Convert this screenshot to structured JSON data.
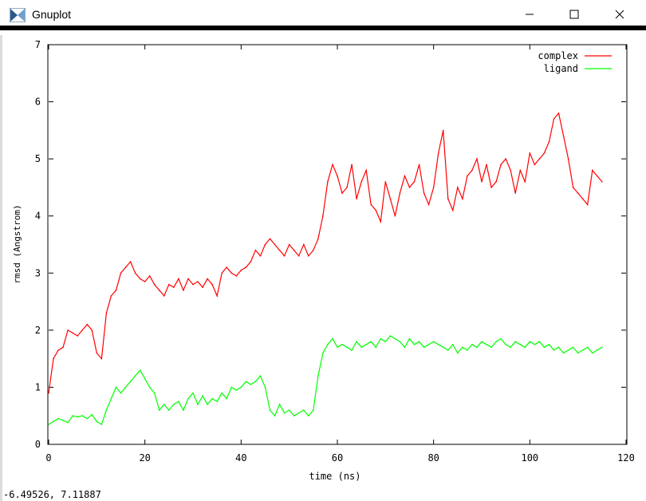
{
  "window": {
    "title": "Gnuplot"
  },
  "status": {
    "coords": "-6.49526,  7.11887"
  },
  "colors": {
    "complex": "#ff0000",
    "ligand": "#00ff00",
    "frame": "#000000"
  },
  "chart_data": {
    "type": "line",
    "title": "",
    "xlabel": "time (ns)",
    "ylabel": "rmsd (Angstrom)",
    "xlim": [
      0,
      120
    ],
    "ylim": [
      0,
      7
    ],
    "xticks": [
      0,
      20,
      40,
      60,
      80,
      100,
      120
    ],
    "yticks": [
      0,
      1,
      2,
      3,
      4,
      5,
      6,
      7
    ],
    "legend_position": "top-right",
    "series": [
      {
        "name": "complex",
        "color": "#ff0000",
        "points": [
          [
            0,
            0.9
          ],
          [
            1,
            1.5
          ],
          [
            2,
            1.65
          ],
          [
            3,
            1.7
          ],
          [
            4,
            2.0
          ],
          [
            5,
            1.95
          ],
          [
            6,
            1.9
          ],
          [
            7,
            2.0
          ],
          [
            8,
            2.1
          ],
          [
            9,
            2.0
          ],
          [
            10,
            1.6
          ],
          [
            11,
            1.5
          ],
          [
            12,
            2.3
          ],
          [
            13,
            2.6
          ],
          [
            14,
            2.7
          ],
          [
            15,
            3.0
          ],
          [
            16,
            3.1
          ],
          [
            17,
            3.2
          ],
          [
            18,
            3.0
          ],
          [
            19,
            2.9
          ],
          [
            20,
            2.85
          ],
          [
            21,
            2.95
          ],
          [
            22,
            2.8
          ],
          [
            23,
            2.7
          ],
          [
            24,
            2.6
          ],
          [
            25,
            2.8
          ],
          [
            26,
            2.75
          ],
          [
            27,
            2.9
          ],
          [
            28,
            2.7
          ],
          [
            29,
            2.9
          ],
          [
            30,
            2.8
          ],
          [
            31,
            2.85
          ],
          [
            32,
            2.75
          ],
          [
            33,
            2.9
          ],
          [
            34,
            2.8
          ],
          [
            35,
            2.6
          ],
          [
            36,
            3.0
          ],
          [
            37,
            3.1
          ],
          [
            38,
            3.0
          ],
          [
            39,
            2.95
          ],
          [
            40,
            3.05
          ],
          [
            41,
            3.1
          ],
          [
            42,
            3.2
          ],
          [
            43,
            3.4
          ],
          [
            44,
            3.3
          ],
          [
            45,
            3.5
          ],
          [
            46,
            3.6
          ],
          [
            47,
            3.5
          ],
          [
            48,
            3.4
          ],
          [
            49,
            3.3
          ],
          [
            50,
            3.5
          ],
          [
            51,
            3.4
          ],
          [
            52,
            3.3
          ],
          [
            53,
            3.5
          ],
          [
            54,
            3.3
          ],
          [
            55,
            3.4
          ],
          [
            56,
            3.6
          ],
          [
            57,
            4.0
          ],
          [
            58,
            4.6
          ],
          [
            59,
            4.9
          ],
          [
            60,
            4.7
          ],
          [
            61,
            4.4
          ],
          [
            62,
            4.5
          ],
          [
            63,
            4.9
          ],
          [
            64,
            4.3
          ],
          [
            65,
            4.6
          ],
          [
            66,
            4.8
          ],
          [
            67,
            4.2
          ],
          [
            68,
            4.1
          ],
          [
            69,
            3.9
          ],
          [
            70,
            4.6
          ],
          [
            71,
            4.3
          ],
          [
            72,
            4.0
          ],
          [
            73,
            4.4
          ],
          [
            74,
            4.7
          ],
          [
            75,
            4.5
          ],
          [
            76,
            4.6
          ],
          [
            77,
            4.9
          ],
          [
            78,
            4.4
          ],
          [
            79,
            4.2
          ],
          [
            80,
            4.5
          ],
          [
            81,
            5.1
          ],
          [
            82,
            5.5
          ],
          [
            83,
            4.3
          ],
          [
            84,
            4.1
          ],
          [
            85,
            4.5
          ],
          [
            86,
            4.3
          ],
          [
            87,
            4.7
          ],
          [
            88,
            4.8
          ],
          [
            89,
            5.0
          ],
          [
            90,
            4.6
          ],
          [
            91,
            4.9
          ],
          [
            92,
            4.5
          ],
          [
            93,
            4.6
          ],
          [
            94,
            4.9
          ],
          [
            95,
            5.0
          ],
          [
            96,
            4.8
          ],
          [
            97,
            4.4
          ],
          [
            98,
            4.8
          ],
          [
            99,
            4.6
          ],
          [
            100,
            5.1
          ],
          [
            101,
            4.9
          ],
          [
            102,
            5.0
          ],
          [
            103,
            5.1
          ],
          [
            104,
            5.3
          ],
          [
            105,
            5.7
          ],
          [
            106,
            5.8
          ],
          [
            107,
            5.4
          ],
          [
            108,
            5.0
          ],
          [
            109,
            4.5
          ],
          [
            110,
            4.4
          ],
          [
            111,
            4.3
          ],
          [
            112,
            4.2
          ],
          [
            113,
            4.8
          ],
          [
            114,
            4.7
          ],
          [
            115,
            4.6
          ]
        ]
      },
      {
        "name": "ligand",
        "color": "#00ff00",
        "points": [
          [
            0,
            0.35
          ],
          [
            1,
            0.4
          ],
          [
            2,
            0.45
          ],
          [
            3,
            0.42
          ],
          [
            4,
            0.38
          ],
          [
            5,
            0.5
          ],
          [
            6,
            0.48
          ],
          [
            7,
            0.5
          ],
          [
            8,
            0.45
          ],
          [
            9,
            0.52
          ],
          [
            10,
            0.4
          ],
          [
            11,
            0.35
          ],
          [
            12,
            0.6
          ],
          [
            13,
            0.8
          ],
          [
            14,
            1.0
          ],
          [
            15,
            0.9
          ],
          [
            16,
            1.0
          ],
          [
            17,
            1.1
          ],
          [
            18,
            1.2
          ],
          [
            19,
            1.3
          ],
          [
            20,
            1.15
          ],
          [
            21,
            1.0
          ],
          [
            22,
            0.9
          ],
          [
            23,
            0.6
          ],
          [
            24,
            0.7
          ],
          [
            25,
            0.6
          ],
          [
            26,
            0.7
          ],
          [
            27,
            0.75
          ],
          [
            28,
            0.6
          ],
          [
            29,
            0.8
          ],
          [
            30,
            0.9
          ],
          [
            31,
            0.7
          ],
          [
            32,
            0.85
          ],
          [
            33,
            0.7
          ],
          [
            34,
            0.8
          ],
          [
            35,
            0.75
          ],
          [
            36,
            0.9
          ],
          [
            37,
            0.8
          ],
          [
            38,
            1.0
          ],
          [
            39,
            0.95
          ],
          [
            40,
            1.0
          ],
          [
            41,
            1.1
          ],
          [
            42,
            1.05
          ],
          [
            43,
            1.1
          ],
          [
            44,
            1.2
          ],
          [
            45,
            1.0
          ],
          [
            46,
            0.6
          ],
          [
            47,
            0.5
          ],
          [
            48,
            0.7
          ],
          [
            49,
            0.55
          ],
          [
            50,
            0.6
          ],
          [
            51,
            0.5
          ],
          [
            52,
            0.55
          ],
          [
            53,
            0.6
          ],
          [
            54,
            0.5
          ],
          [
            55,
            0.6
          ],
          [
            56,
            1.2
          ],
          [
            57,
            1.6
          ],
          [
            58,
            1.75
          ],
          [
            59,
            1.85
          ],
          [
            60,
            1.7
          ],
          [
            61,
            1.75
          ],
          [
            62,
            1.7
          ],
          [
            63,
            1.65
          ],
          [
            64,
            1.8
          ],
          [
            65,
            1.7
          ],
          [
            66,
            1.75
          ],
          [
            67,
            1.8
          ],
          [
            68,
            1.7
          ],
          [
            69,
            1.85
          ],
          [
            70,
            1.8
          ],
          [
            71,
            1.9
          ],
          [
            72,
            1.85
          ],
          [
            73,
            1.8
          ],
          [
            74,
            1.7
          ],
          [
            75,
            1.85
          ],
          [
            76,
            1.75
          ],
          [
            77,
            1.8
          ],
          [
            78,
            1.7
          ],
          [
            79,
            1.75
          ],
          [
            80,
            1.8
          ],
          [
            81,
            1.75
          ],
          [
            82,
            1.7
          ],
          [
            83,
            1.65
          ],
          [
            84,
            1.75
          ],
          [
            85,
            1.6
          ],
          [
            86,
            1.7
          ],
          [
            87,
            1.65
          ],
          [
            88,
            1.75
          ],
          [
            89,
            1.7
          ],
          [
            90,
            1.8
          ],
          [
            91,
            1.75
          ],
          [
            92,
            1.7
          ],
          [
            93,
            1.8
          ],
          [
            94,
            1.85
          ],
          [
            95,
            1.75
          ],
          [
            96,
            1.7
          ],
          [
            97,
            1.8
          ],
          [
            98,
            1.75
          ],
          [
            99,
            1.7
          ],
          [
            100,
            1.8
          ],
          [
            101,
            1.75
          ],
          [
            102,
            1.8
          ],
          [
            103,
            1.7
          ],
          [
            104,
            1.75
          ],
          [
            105,
            1.65
          ],
          [
            106,
            1.7
          ],
          [
            107,
            1.6
          ],
          [
            108,
            1.65
          ],
          [
            109,
            1.7
          ],
          [
            110,
            1.6
          ],
          [
            111,
            1.65
          ],
          [
            112,
            1.7
          ],
          [
            113,
            1.6
          ],
          [
            114,
            1.65
          ],
          [
            115,
            1.7
          ]
        ]
      }
    ]
  }
}
